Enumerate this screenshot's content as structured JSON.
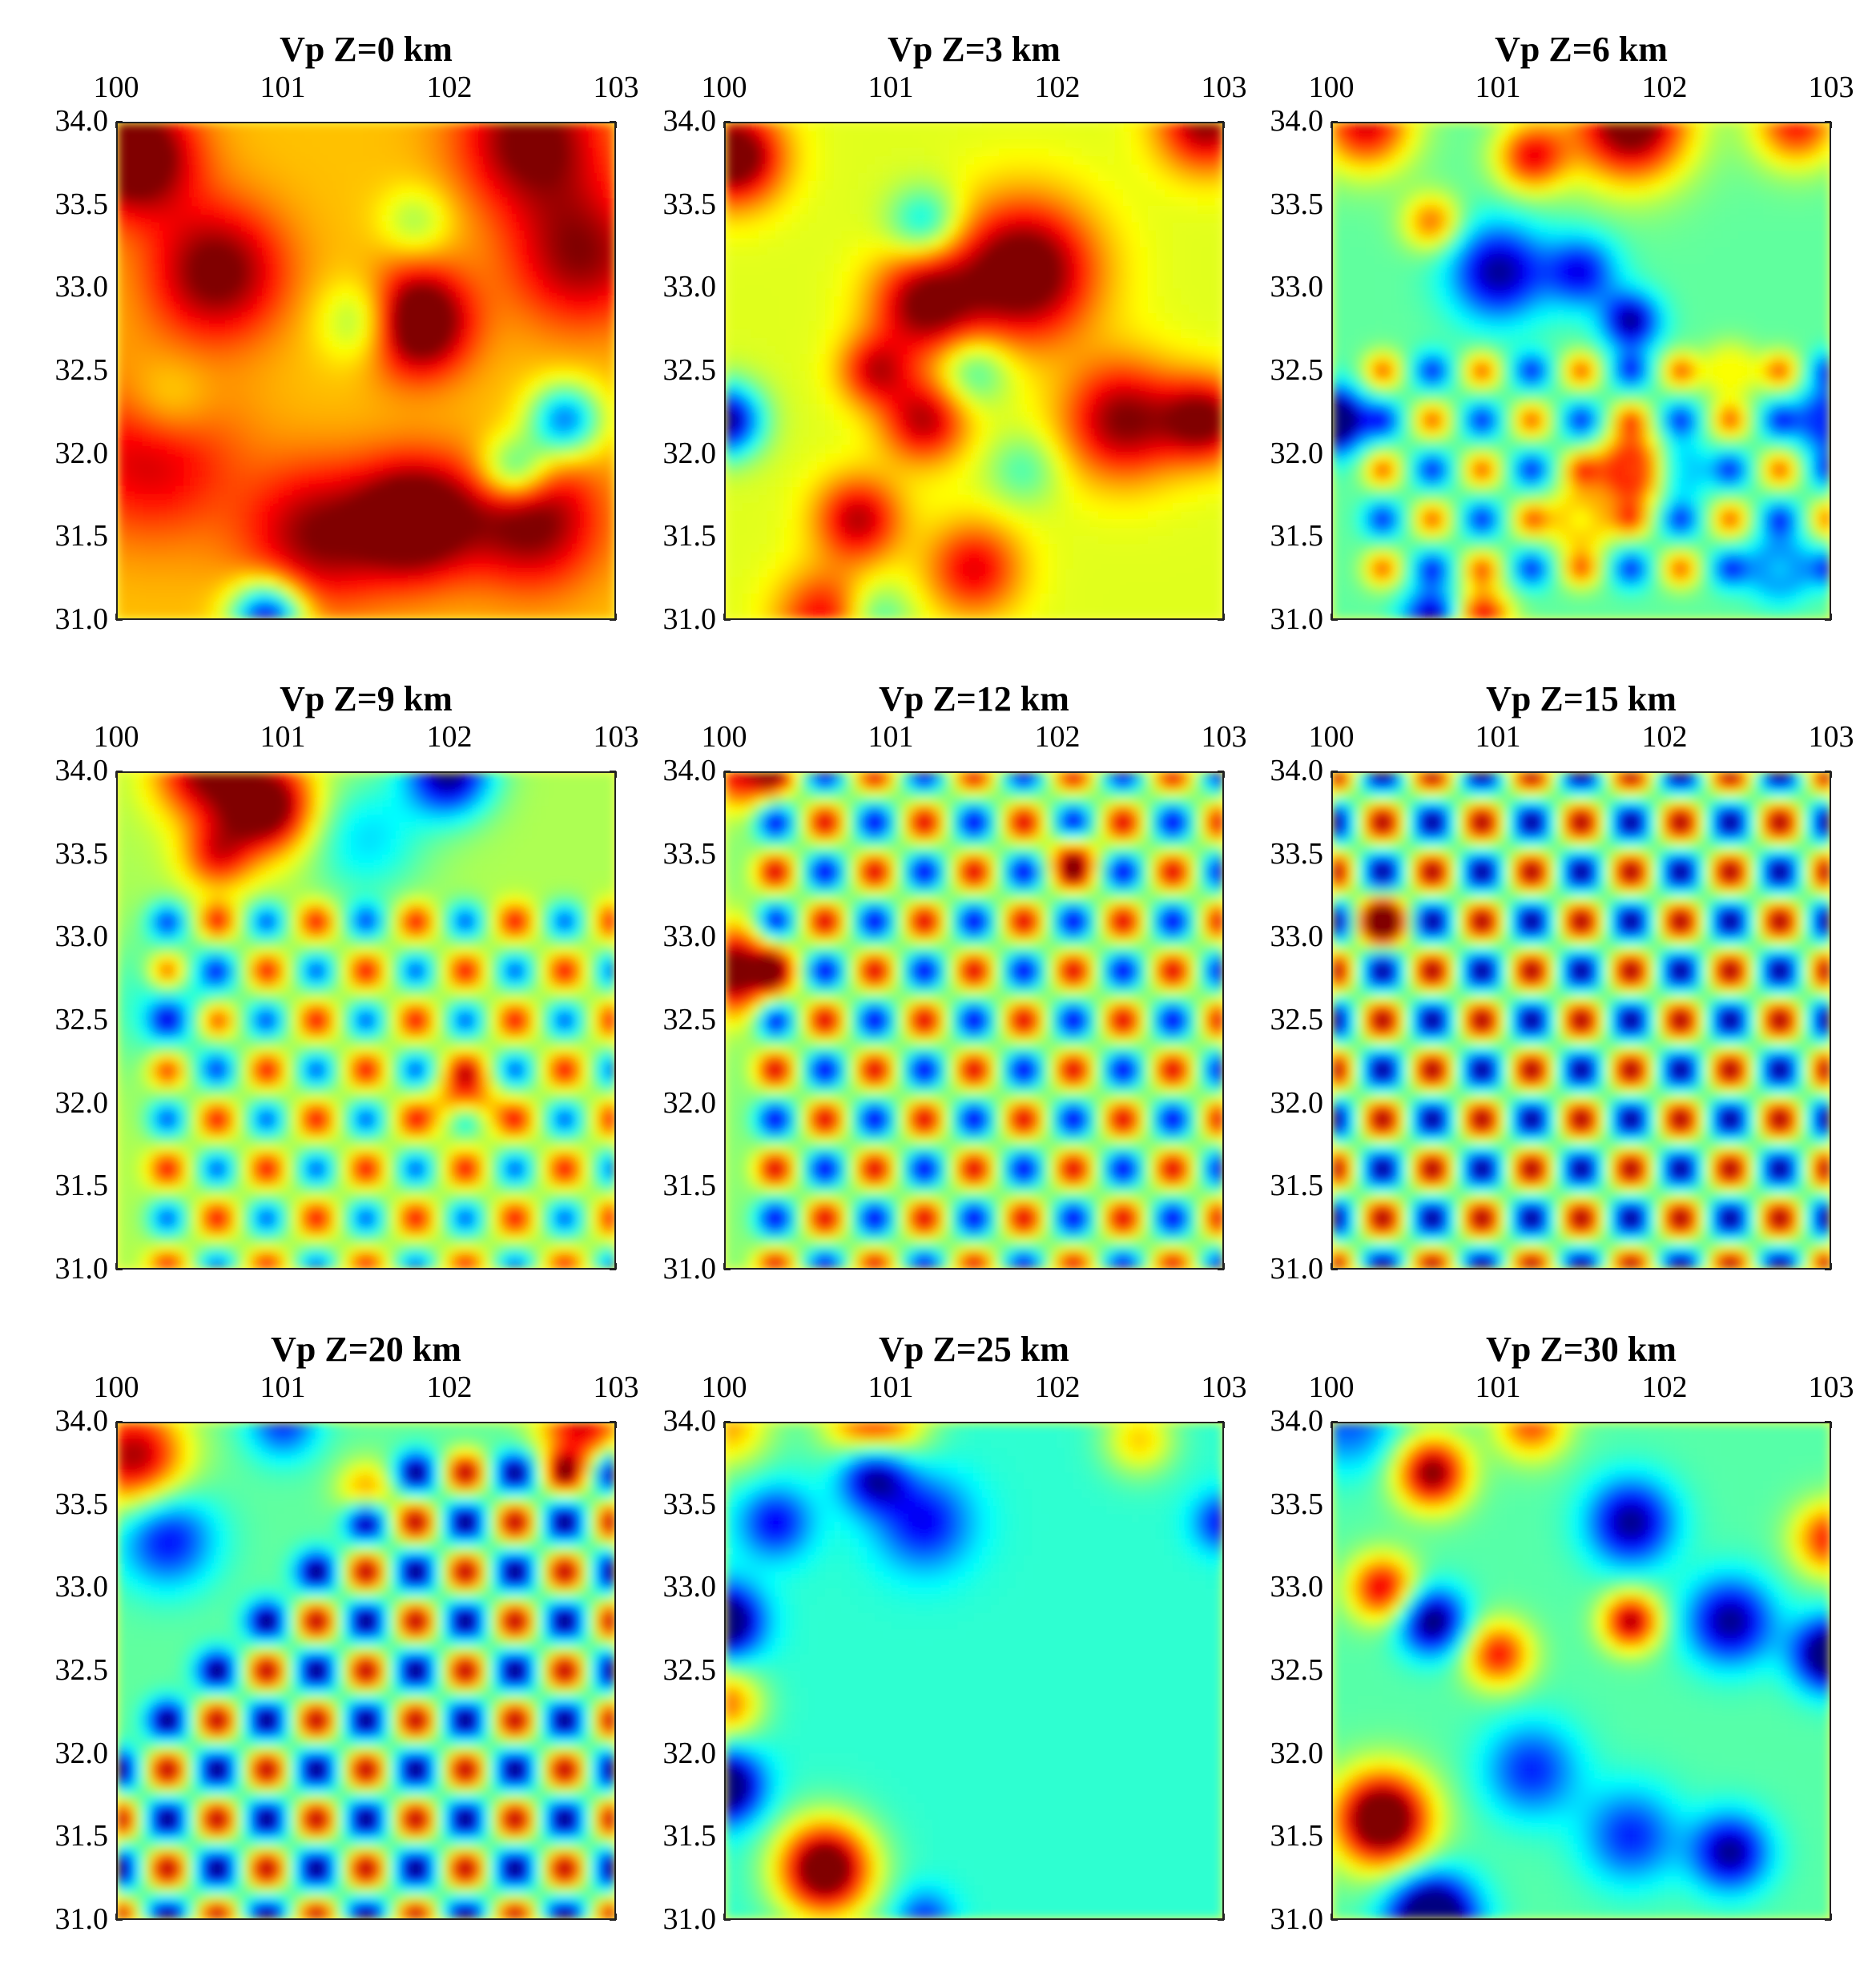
{
  "chart_data": [
    {
      "type": "heatmap",
      "title": "Vp Z=0 km",
      "x_ticks": [
        "100",
        "101",
        "102",
        "103"
      ],
      "y_ticks": [
        "34.0",
        "33.5",
        "33.0",
        "32.5",
        "32.0",
        "31.5",
        "31.0"
      ],
      "xlim": [
        100,
        103
      ],
      "ylim": [
        31.0,
        34.0
      ],
      "colormap": "jet",
      "colors": {
        "base": "#ffc020"
      },
      "anomalies": [
        {
          "x": 100.1,
          "y": 33.8,
          "amplitude": 0.9,
          "width": 0.25
        },
        {
          "x": 101.8,
          "y": 32.8,
          "amplitude": 1.0,
          "width": 0.22
        },
        {
          "x": 100.6,
          "y": 33.1,
          "amplitude": 0.7,
          "width": 0.28
        },
        {
          "x": 102.5,
          "y": 33.9,
          "amplitude": 0.7,
          "width": 0.3
        },
        {
          "x": 102.8,
          "y": 33.2,
          "amplitude": 0.6,
          "width": 0.3
        },
        {
          "x": 101.8,
          "y": 31.6,
          "amplitude": 0.9,
          "width": 0.25
        },
        {
          "x": 101.2,
          "y": 31.5,
          "amplitude": 0.6,
          "width": 0.3
        },
        {
          "x": 102.5,
          "y": 31.6,
          "amplitude": 0.7,
          "width": 0.28
        },
        {
          "x": 100.2,
          "y": 32.0,
          "amplitude": 0.5,
          "width": 0.35
        },
        {
          "x": 100.9,
          "y": 31.0,
          "amplitude": -1.2,
          "width": 0.15
        },
        {
          "x": 102.7,
          "y": 32.2,
          "amplitude": -0.9,
          "width": 0.15
        },
        {
          "x": 102.4,
          "y": 31.9,
          "amplitude": -0.7,
          "width": 0.15
        },
        {
          "x": 101.5,
          "y": 32.8,
          "amplitude": -0.5,
          "width": 0.18
        },
        {
          "x": 100.3,
          "y": 32.3,
          "amplitude": -0.3,
          "width": 0.2
        },
        {
          "x": 101.8,
          "y": 33.4,
          "amplitude": -0.3,
          "width": 0.15
        }
      ]
    },
    {
      "type": "heatmap",
      "title": "Vp Z=3 km",
      "x_ticks": [
        "100",
        "101",
        "102",
        "103"
      ],
      "y_ticks": [
        "34.0",
        "33.5",
        "33.0",
        "32.5",
        "32.0",
        "31.5",
        "31.0"
      ],
      "xlim": [
        100,
        103
      ],
      "ylim": [
        31.0,
        34.0
      ],
      "colormap": "jet",
      "colors": {
        "base": "#f0f030"
      },
      "anomalies": [
        {
          "x": 100.05,
          "y": 33.8,
          "amplitude": 1.0,
          "width": 0.2
        },
        {
          "x": 101.8,
          "y": 33.1,
          "amplitude": 1.0,
          "width": 0.3
        },
        {
          "x": 101.2,
          "y": 32.9,
          "amplitude": 0.8,
          "width": 0.22
        },
        {
          "x": 102.4,
          "y": 32.2,
          "amplitude": 0.8,
          "width": 0.25
        },
        {
          "x": 102.9,
          "y": 32.2,
          "amplitude": 0.8,
          "width": 0.18
        },
        {
          "x": 101.2,
          "y": 32.2,
          "amplitude": 0.7,
          "width": 0.18
        },
        {
          "x": 100.8,
          "y": 31.6,
          "amplitude": 0.7,
          "width": 0.18
        },
        {
          "x": 101.5,
          "y": 31.3,
          "amplitude": 0.6,
          "width": 0.2
        },
        {
          "x": 102.9,
          "y": 34.0,
          "amplitude": 0.8,
          "width": 0.2
        },
        {
          "x": 100.6,
          "y": 31.0,
          "amplitude": 0.6,
          "width": 0.2
        },
        {
          "x": 100.9,
          "y": 32.5,
          "amplitude": 0.6,
          "width": 0.15
        },
        {
          "x": 100.0,
          "y": 32.2,
          "amplitude": -1.2,
          "width": 0.15
        },
        {
          "x": 101.2,
          "y": 33.4,
          "amplitude": -0.5,
          "width": 0.15
        },
        {
          "x": 101.5,
          "y": 32.5,
          "amplitude": -0.4,
          "width": 0.15
        },
        {
          "x": 100.9,
          "y": 31.0,
          "amplitude": -0.4,
          "width": 0.15
        },
        {
          "x": 101.8,
          "y": 31.9,
          "amplitude": -0.3,
          "width": 0.15
        }
      ]
    },
    {
      "type": "heatmap",
      "title": "Vp Z=6 km",
      "x_ticks": [
        "100",
        "101",
        "102",
        "103"
      ],
      "y_ticks": [
        "34.0",
        "33.5",
        "33.0",
        "32.5",
        "32.0",
        "31.5",
        "31.0"
      ],
      "xlim": [
        100,
        103
      ],
      "ylim": [
        31.0,
        34.0
      ],
      "colormap": "jet",
      "colors": {
        "base": "#80ffc0"
      },
      "anomalies": [
        {
          "x": 101.8,
          "y": 34.0,
          "amplitude": 1.2,
          "width": 0.25
        },
        {
          "x": 100.2,
          "y": 34.0,
          "amplitude": 0.9,
          "width": 0.2
        },
        {
          "x": 102.8,
          "y": 34.0,
          "amplitude": 0.8,
          "width": 0.18
        },
        {
          "x": 101.2,
          "y": 33.8,
          "amplitude": 0.8,
          "width": 0.15
        },
        {
          "x": 101.8,
          "y": 31.9,
          "amplitude": 1.3,
          "width": 0.13
        },
        {
          "x": 101.5,
          "y": 31.6,
          "amplitude": 0.9,
          "width": 0.12
        },
        {
          "x": 102.4,
          "y": 32.5,
          "amplitude": 0.9,
          "width": 0.1
        },
        {
          "x": 100.9,
          "y": 31.0,
          "amplitude": 0.9,
          "width": 0.12
        },
        {
          "x": 100.6,
          "y": 33.4,
          "amplitude": 0.6,
          "width": 0.12
        },
        {
          "x": 100.0,
          "y": 32.2,
          "amplitude": -1.4,
          "width": 0.13
        },
        {
          "x": 103.0,
          "y": 32.2,
          "amplitude": -1.2,
          "width": 0.12
        },
        {
          "x": 101.0,
          "y": 33.1,
          "amplitude": -0.9,
          "width": 0.2
        },
        {
          "x": 101.5,
          "y": 33.1,
          "amplitude": -0.7,
          "width": 0.15
        },
        {
          "x": 101.8,
          "y": 32.8,
          "amplitude": -0.9,
          "width": 0.12
        },
        {
          "x": 102.1,
          "y": 31.9,
          "amplitude": -0.9,
          "width": 0.1
        },
        {
          "x": 102.7,
          "y": 31.3,
          "amplitude": -0.9,
          "width": 0.12
        },
        {
          "x": 100.6,
          "y": 31.0,
          "amplitude": -0.9,
          "width": 0.12
        }
      ],
      "lattice": {
        "x_start": 100.3,
        "x_step": 0.3,
        "y_start": 31.3,
        "y_end": 32.5,
        "y_step": 0.3,
        "amplitude": 0.6,
        "width": 0.08
      }
    },
    {
      "type": "heatmap",
      "title": "Vp Z=9 km",
      "x_ticks": [
        "100",
        "101",
        "102",
        "103"
      ],
      "y_ticks": [
        "34.0",
        "33.5",
        "33.0",
        "32.5",
        "32.0",
        "31.5",
        "31.0"
      ],
      "xlim": [
        100,
        103
      ],
      "ylim": [
        31.0,
        34.0
      ],
      "colormap": "jet",
      "colors": {
        "base": "#c0ff60"
      },
      "anomalies": [
        {
          "x": 100.9,
          "y": 33.8,
          "amplitude": 1.1,
          "width": 0.2
        },
        {
          "x": 100.5,
          "y": 34.0,
          "amplitude": 0.8,
          "width": 0.2
        },
        {
          "x": 100.6,
          "y": 33.5,
          "amplitude": 0.6,
          "width": 0.15
        },
        {
          "x": 102.0,
          "y": 34.0,
          "amplitude": -1.1,
          "width": 0.18
        },
        {
          "x": 101.5,
          "y": 33.6,
          "amplitude": -0.4,
          "width": 0.25
        },
        {
          "x": 100.3,
          "y": 32.6,
          "amplitude": -0.3,
          "width": 0.3
        },
        {
          "x": 102.1,
          "y": 32.0,
          "amplitude": 0.6,
          "width": 0.12
        }
      ],
      "lattice": {
        "x_start": 100.3,
        "x_step": 0.3,
        "y_start": 31.0,
        "y_end": 33.1,
        "y_step": 0.3,
        "amplitude": 0.65,
        "width": 0.08
      }
    },
    {
      "type": "heatmap",
      "title": "Vp Z=12 km",
      "x_ticks": [
        "100",
        "101",
        "102",
        "103"
      ],
      "y_ticks": [
        "34.0",
        "33.5",
        "33.0",
        "32.5",
        "32.0",
        "31.5",
        "31.0"
      ],
      "xlim": [
        100,
        103
      ],
      "ylim": [
        31.0,
        34.0
      ],
      "colormap": "jet",
      "colors": {
        "base": "#a0ff90"
      },
      "anomalies": [
        {
          "x": 100.05,
          "y": 32.8,
          "amplitude": 1.1,
          "width": 0.18
        },
        {
          "x": 100.1,
          "y": 34.0,
          "amplitude": 0.8,
          "width": 0.15
        },
        {
          "x": 102.1,
          "y": 33.5,
          "amplitude": 0.5,
          "width": 0.1
        }
      ],
      "lattice": {
        "x_start": 100.3,
        "x_step": 0.3,
        "y_start": 31.0,
        "y_end": 34.0,
        "y_step": 0.3,
        "amplitude": 0.85,
        "width": 0.08
      }
    },
    {
      "type": "heatmap",
      "title": "Vp Z=15 km",
      "x_ticks": [
        "100",
        "101",
        "102",
        "103"
      ],
      "y_ticks": [
        "34.0",
        "33.5",
        "33.0",
        "32.5",
        "32.0",
        "31.5",
        "31.0"
      ],
      "xlim": [
        100,
        103
      ],
      "ylim": [
        31.0,
        34.0
      ],
      "colormap": "jet",
      "colors": {
        "base": "#90ffa0"
      },
      "anomalies": [
        {
          "x": 100.3,
          "y": 33.1,
          "amplitude": 0.8,
          "width": 0.1
        }
      ],
      "lattice": {
        "x_start": 100.0,
        "x_step": 0.3,
        "y_start": 31.0,
        "y_end": 34.0,
        "y_step": 0.3,
        "amplitude": 1.0,
        "width": 0.085
      }
    },
    {
      "type": "heatmap",
      "title": "Vp Z=20 km",
      "x_ticks": [
        "100",
        "101",
        "102",
        "103"
      ],
      "y_ticks": [
        "34.0",
        "33.5",
        "33.0",
        "32.5",
        "32.0",
        "31.5",
        "31.0"
      ],
      "xlim": [
        100,
        103
      ],
      "ylim": [
        31.0,
        34.0
      ],
      "colormap": "jet",
      "colors": {
        "base": "#70ffb0"
      },
      "anomalies": [
        {
          "x": 100.1,
          "y": 33.8,
          "amplitude": 1.0,
          "width": 0.22
        },
        {
          "x": 102.8,
          "y": 34.0,
          "amplitude": 0.9,
          "width": 0.18
        },
        {
          "x": 101.5,
          "y": 33.6,
          "amplitude": 0.5,
          "width": 0.12
        },
        {
          "x": 100.3,
          "y": 33.3,
          "amplitude": -0.7,
          "width": 0.2
        },
        {
          "x": 101.0,
          "y": 34.0,
          "amplitude": -0.6,
          "width": 0.15
        }
      ],
      "lattice": {
        "x_start": 100.0,
        "x_step": 0.3,
        "y_start": 31.0,
        "y_end": 33.8,
        "y_step": 0.3,
        "amplitude": 1.0,
        "width": 0.085,
        "diagonal_mask": true
      }
    },
    {
      "type": "heatmap",
      "title": "Vp Z=25 km",
      "x_ticks": [
        "100",
        "101",
        "102",
        "103"
      ],
      "y_ticks": [
        "34.0",
        "33.5",
        "33.0",
        "32.5",
        "32.0",
        "31.5",
        "31.0"
      ],
      "xlim": [
        100,
        103
      ],
      "ylim": [
        31.0,
        34.0
      ],
      "colormap": "jet",
      "colors": {
        "base": "#40f0e0"
      },
      "anomalies": [
        {
          "x": 100.6,
          "y": 31.3,
          "amplitude": 1.4,
          "width": 0.2
        },
        {
          "x": 100.9,
          "y": 34.0,
          "amplitude": 1.0,
          "width": 0.2
        },
        {
          "x": 100.0,
          "y": 32.3,
          "amplitude": 0.7,
          "width": 0.15
        },
        {
          "x": 100.0,
          "y": 34.0,
          "amplitude": 0.6,
          "width": 0.2
        },
        {
          "x": 102.5,
          "y": 33.9,
          "amplitude": 0.5,
          "width": 0.15
        },
        {
          "x": 100.0,
          "y": 32.8,
          "amplitude": -1.1,
          "width": 0.15
        },
        {
          "x": 100.0,
          "y": 31.8,
          "amplitude": -1.1,
          "width": 0.15
        },
        {
          "x": 100.9,
          "y": 33.7,
          "amplitude": -1.0,
          "width": 0.15
        },
        {
          "x": 101.2,
          "y": 33.4,
          "amplitude": -0.6,
          "width": 0.2
        },
        {
          "x": 100.3,
          "y": 33.4,
          "amplitude": -0.6,
          "width": 0.15
        },
        {
          "x": 103.0,
          "y": 33.4,
          "amplitude": -0.6,
          "width": 0.12
        },
        {
          "x": 101.2,
          "y": 31.0,
          "amplitude": -0.5,
          "width": 0.12
        }
      ]
    },
    {
      "type": "heatmap",
      "title": "Vp Z=30 km",
      "x_ticks": [
        "100",
        "101",
        "102",
        "103"
      ],
      "y_ticks": [
        "34.0",
        "33.5",
        "33.0",
        "32.5",
        "32.0",
        "31.5",
        "31.0"
      ],
      "xlim": [
        100,
        103
      ],
      "ylim": [
        31.0,
        34.0
      ],
      "colormap": "jet",
      "colors": {
        "base": "#60ffb0"
      },
      "anomalies": [
        {
          "x": 100.3,
          "y": 31.6,
          "amplitude": 1.4,
          "width": 0.2
        },
        {
          "x": 100.6,
          "y": 33.7,
          "amplitude": 1.1,
          "width": 0.15
        },
        {
          "x": 100.3,
          "y": 33.0,
          "amplitude": 0.9,
          "width": 0.14
        },
        {
          "x": 101.0,
          "y": 32.6,
          "amplitude": 0.8,
          "width": 0.14
        },
        {
          "x": 101.8,
          "y": 32.8,
          "amplitude": 1.0,
          "width": 0.12
        },
        {
          "x": 103.0,
          "y": 33.3,
          "amplitude": 0.8,
          "width": 0.15
        },
        {
          "x": 101.2,
          "y": 34.0,
          "amplitude": 0.7,
          "width": 0.15
        },
        {
          "x": 100.6,
          "y": 31.0,
          "amplitude": -1.4,
          "width": 0.18
        },
        {
          "x": 103.0,
          "y": 32.6,
          "amplitude": -1.2,
          "width": 0.15
        },
        {
          "x": 100.6,
          "y": 32.8,
          "amplitude": -1.0,
          "width": 0.14
        },
        {
          "x": 101.8,
          "y": 33.4,
          "amplitude": -0.9,
          "width": 0.18
        },
        {
          "x": 102.4,
          "y": 32.8,
          "amplitude": -0.9,
          "width": 0.18
        },
        {
          "x": 102.4,
          "y": 31.4,
          "amplitude": -0.9,
          "width": 0.16
        },
        {
          "x": 101.2,
          "y": 31.9,
          "amplitude": -0.6,
          "width": 0.2
        },
        {
          "x": 101.8,
          "y": 31.5,
          "amplitude": -0.6,
          "width": 0.2
        },
        {
          "x": 100.1,
          "y": 34.0,
          "amplitude": -0.5,
          "width": 0.2
        }
      ]
    }
  ]
}
